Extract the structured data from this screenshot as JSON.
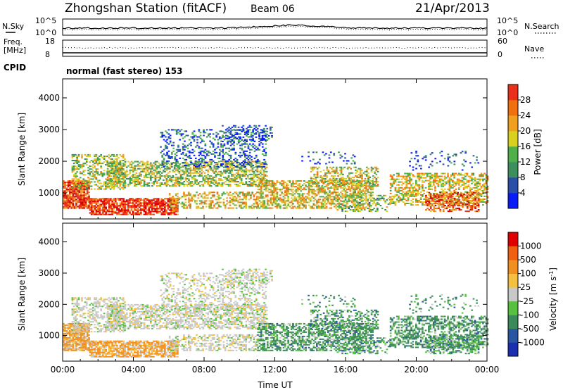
{
  "header": {
    "title": "Zhongshan Station (fitACF)",
    "beam": "Beam 06",
    "date": "21/Apr/2013"
  },
  "noise_panel": {
    "left_label": "N.Sky",
    "right_label": "N.Search",
    "left_ticks": [
      "10^5",
      "10^0"
    ],
    "right_ticks": [
      "10^5",
      "10^0"
    ]
  },
  "freq_panel": {
    "left_label_1": "Freq.",
    "left_label_2": "[MHz]",
    "right_label": "Nave",
    "left_ticks": [
      "18",
      "8"
    ],
    "right_ticks": [
      "60",
      "0"
    ]
  },
  "cpid": {
    "label": "CPID",
    "value": "normal (fast stereo) 153"
  },
  "colors": {
    "power": [
      "#0a1cf5",
      "#2a4fa8",
      "#3d8f5e",
      "#4fb04a",
      "#d9d020",
      "#f0a020",
      "#f07010",
      "#e8301a",
      "#d80000"
    ],
    "velocity": [
      "#e00000",
      "#f06010",
      "#f09020",
      "#f4c040",
      "#c8c8c8",
      "#58c040",
      "#3a8a5a",
      "#2a55a0",
      "#1a2fb0"
    ]
  },
  "chart_data": [
    {
      "type": "heatmap",
      "name": "power",
      "ylabel": "Slant Range [km]",
      "xlabel": "",
      "x_ticks": [
        "00:00",
        "04:00",
        "08:00",
        "12:00",
        "16:00",
        "20:00",
        "00:00"
      ],
      "y_ticks": [
        "1000",
        "2000",
        "3000",
        "4000"
      ],
      "xlim": [
        0,
        24
      ],
      "ylim": [
        180,
        4600
      ],
      "colorbar_label": "Power [dB]",
      "colorbar_ticks": [
        "4",
        "8",
        "12",
        "16",
        "20",
        "24",
        "28"
      ],
      "color_range": [
        0,
        32
      ]
    },
    {
      "type": "heatmap",
      "name": "velocity",
      "ylabel": "Slant Range [km]",
      "xlabel": "Time UT",
      "x_ticks": [
        "00:00",
        "04:00",
        "08:00",
        "12:00",
        "16:00",
        "20:00",
        "00:00"
      ],
      "y_ticks": [
        "1000",
        "2000",
        "3000",
        "4000"
      ],
      "xlim": [
        0,
        24
      ],
      "ylim": [
        180,
        4600
      ],
      "colorbar_label": "Velocity [m s^-1]",
      "colorbar_ticks": [
        "1000",
        "500",
        "100",
        "25",
        "-25",
        "-100",
        "-500",
        "-1000"
      ]
    }
  ]
}
